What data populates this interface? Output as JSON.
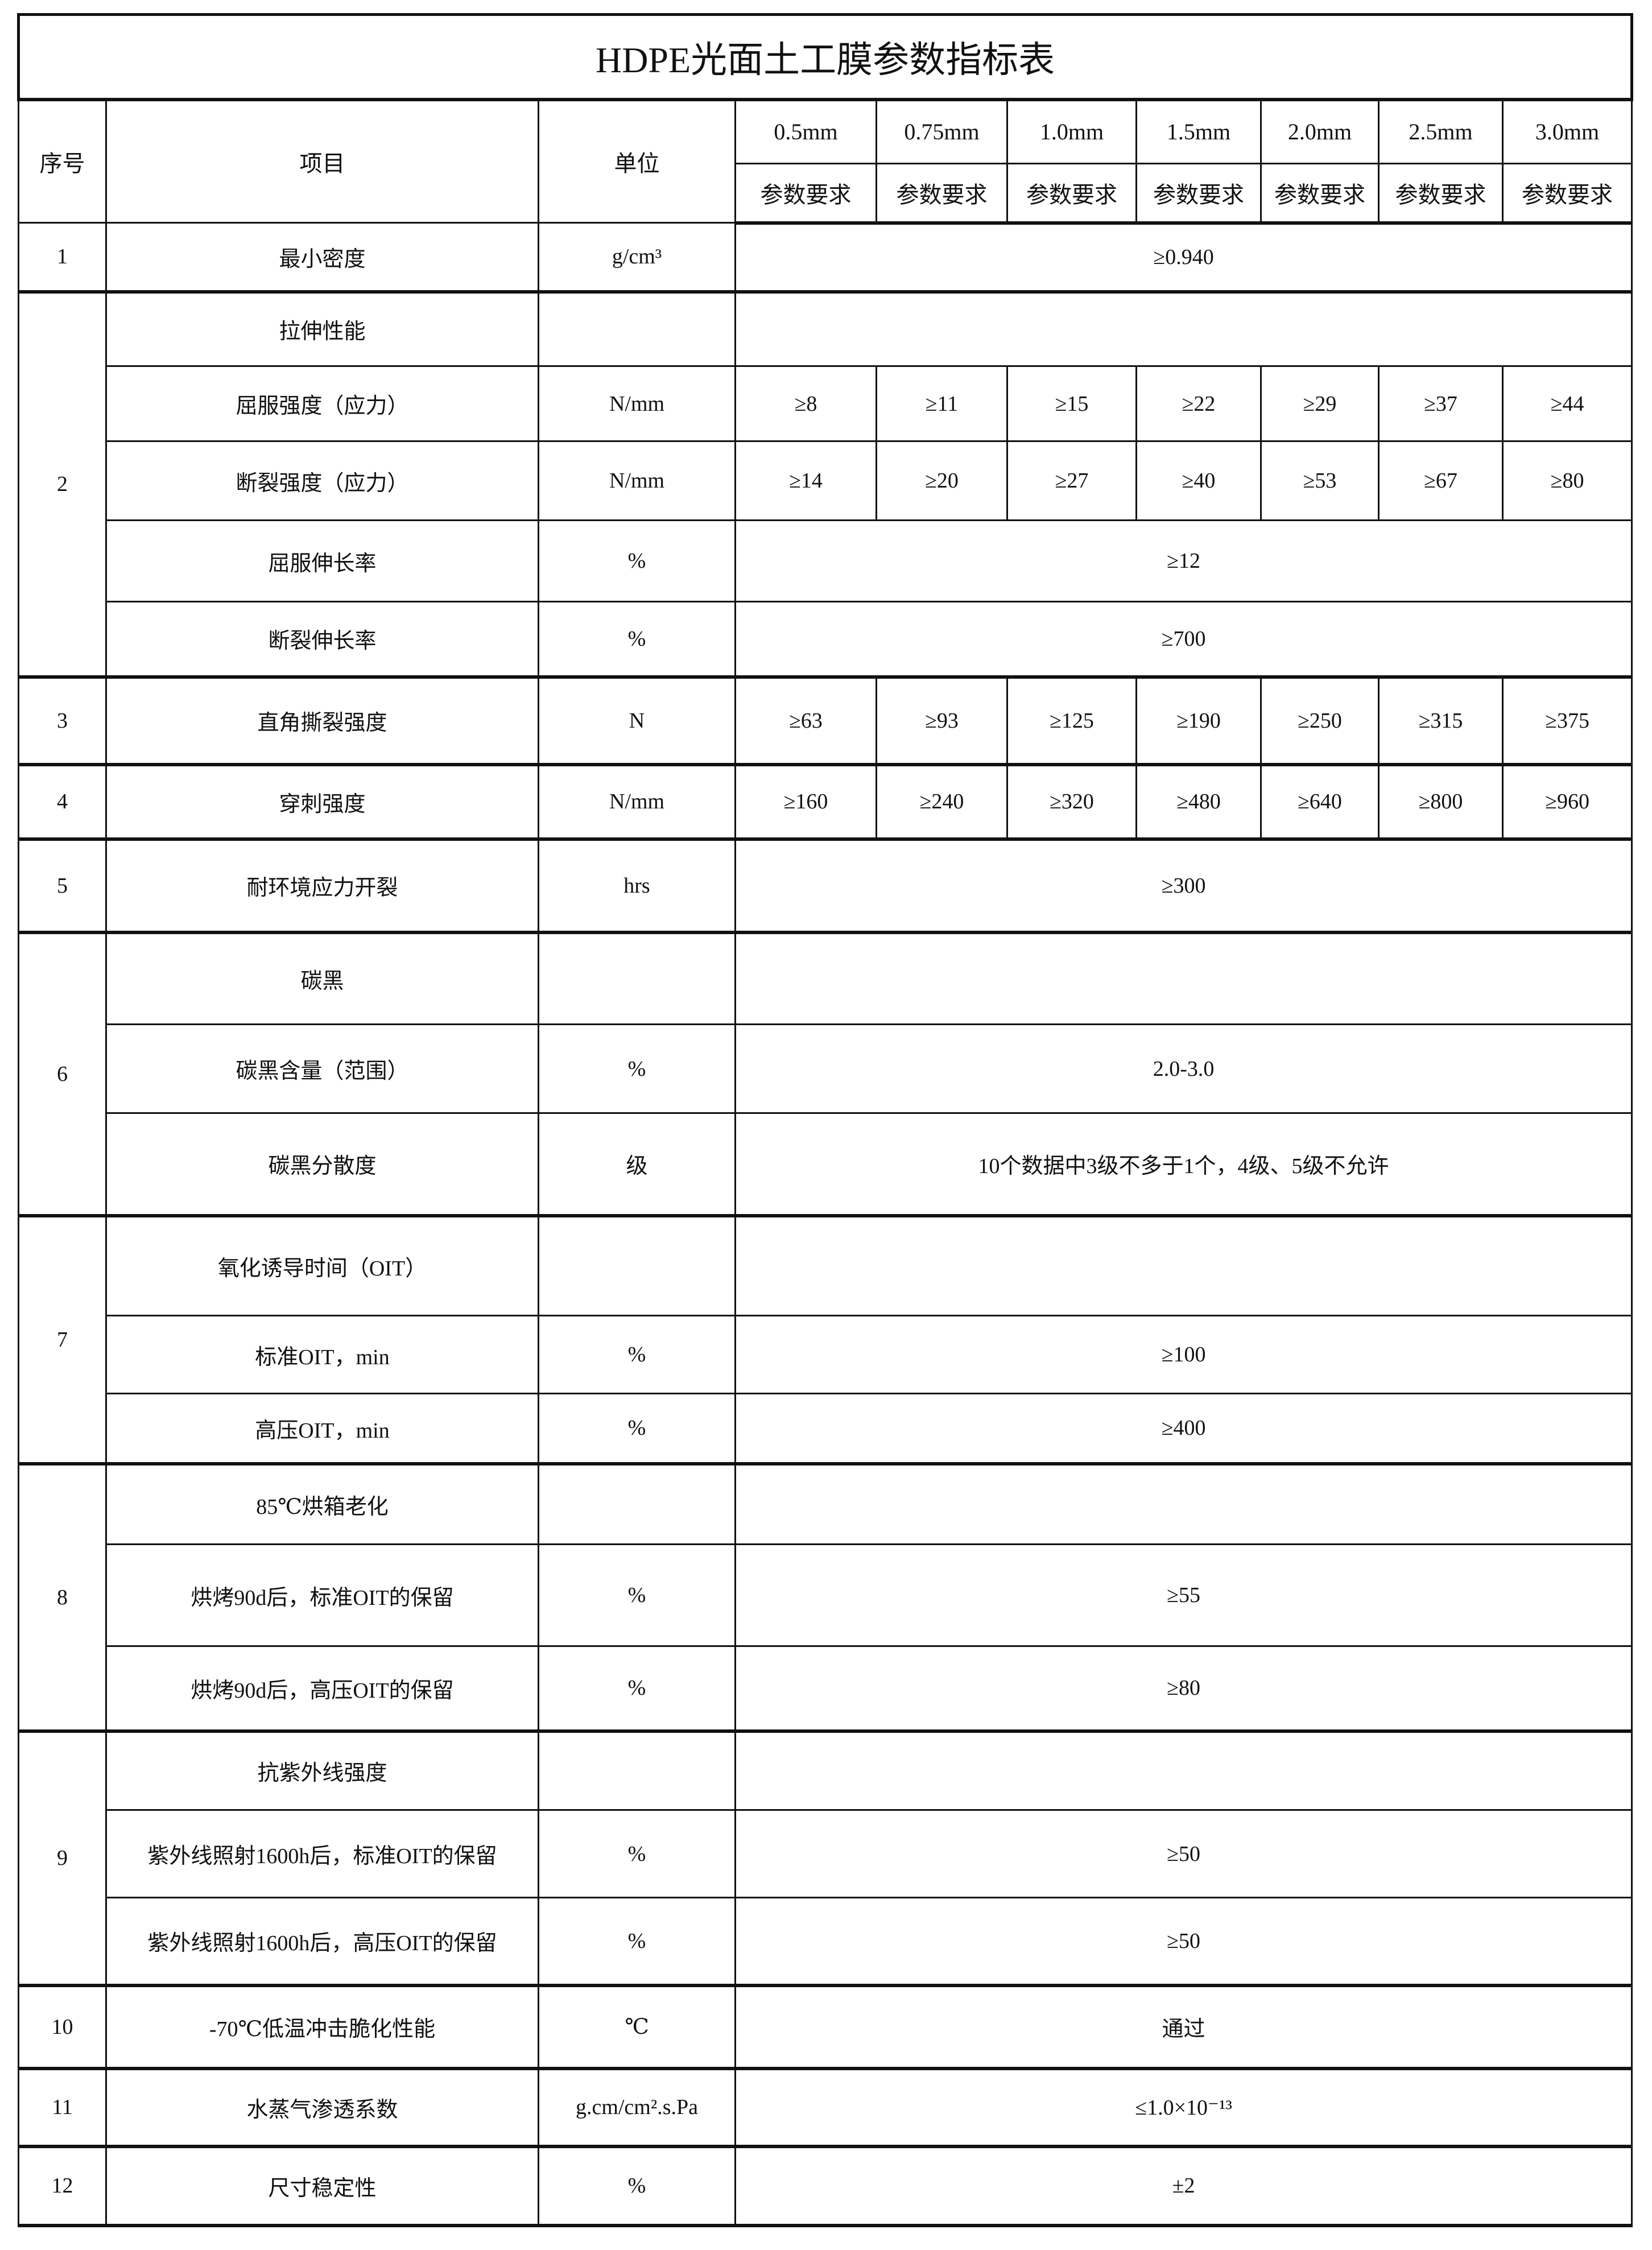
{
  "title": "HDPE光面土工膜参数指标表",
  "header": {
    "no": "序号",
    "item": "项目",
    "unit": "单位",
    "thicknesses": [
      "0.5mm",
      "0.75mm",
      "1.0mm",
      "1.5mm",
      "2.0mm",
      "2.5mm",
      "3.0mm"
    ],
    "requirement": "参数要求"
  },
  "groups": [
    {
      "no": "1",
      "rows": [
        {
          "item": "最小密度",
          "unit": "g/cm³",
          "value": "≥0.940"
        }
      ]
    },
    {
      "no": "2",
      "rows": [
        {
          "item": "拉伸性能",
          "unit": "",
          "value": ""
        },
        {
          "item": "屈服强度（应力）",
          "unit": "N/mm",
          "values": [
            "≥8",
            "≥11",
            "≥15",
            "≥22",
            "≥29",
            "≥37",
            "≥44"
          ]
        },
        {
          "item": "断裂强度（应力）",
          "unit": "N/mm",
          "values": [
            "≥14",
            "≥20",
            "≥27",
            "≥40",
            "≥53",
            "≥67",
            "≥80"
          ]
        },
        {
          "item": "屈服伸长率",
          "unit": "%",
          "value": "≥12"
        },
        {
          "item": "断裂伸长率",
          "unit": "%",
          "value": "≥700"
        }
      ]
    },
    {
      "no": "3",
      "rows": [
        {
          "item": "直角撕裂强度",
          "unit": "N",
          "values": [
            "≥63",
            "≥93",
            "≥125",
            "≥190",
            "≥250",
            "≥315",
            "≥375"
          ]
        }
      ]
    },
    {
      "no": "4",
      "rows": [
        {
          "item": "穿刺强度",
          "unit": "N/mm",
          "values": [
            "≥160",
            "≥240",
            "≥320",
            "≥480",
            "≥640",
            "≥800",
            "≥960"
          ]
        }
      ]
    },
    {
      "no": "5",
      "rows": [
        {
          "item": "耐环境应力开裂",
          "unit": "hrs",
          "value": "≥300"
        }
      ]
    },
    {
      "no": "6",
      "rows": [
        {
          "item": "碳黑",
          "unit": "",
          "value": ""
        },
        {
          "item": "碳黑含量（范围）",
          "unit": "%",
          "value": "2.0-3.0"
        },
        {
          "item": "碳黑分散度",
          "unit": "级",
          "value": "10个数据中3级不多于1个，4级、5级不允许"
        }
      ]
    },
    {
      "no": "7",
      "rows": [
        {
          "item": "氧化诱导时间（OIT）",
          "unit": "",
          "value": ""
        },
        {
          "item": "标准OIT，min",
          "unit": "%",
          "value": "≥100"
        },
        {
          "item": "高压OIT，min",
          "unit": "%",
          "value": "≥400"
        }
      ]
    },
    {
      "no": "8",
      "rows": [
        {
          "item": "85℃烘箱老化",
          "unit": "",
          "value": ""
        },
        {
          "item": "烘烤90d后，标准OIT的保留",
          "unit": "%",
          "value": "≥55"
        },
        {
          "item": "烘烤90d后，高压OIT的保留",
          "unit": "%",
          "value": "≥80"
        }
      ]
    },
    {
      "no": "9",
      "rows": [
        {
          "item": "抗紫外线强度",
          "unit": "",
          "value": ""
        },
        {
          "item": "紫外线照射1600h后，标准OIT的保留",
          "unit": "%",
          "value": "≥50"
        },
        {
          "item": "紫外线照射1600h后，高压OIT的保留",
          "unit": "%",
          "value": "≥50"
        }
      ]
    },
    {
      "no": "10",
      "rows": [
        {
          "item": "-70℃低温冲击脆化性能",
          "unit": "℃",
          "value": "通过"
        }
      ]
    },
    {
      "no": "11",
      "rows": [
        {
          "item": "水蒸气渗透系数",
          "unit": "g.cm/cm².s.Pa",
          "value": "≤1.0×10⁻¹³"
        }
      ]
    },
    {
      "no": "12",
      "rows": [
        {
          "item": "尺寸稳定性",
          "unit": "%",
          "value": "±2"
        }
      ]
    }
  ]
}
